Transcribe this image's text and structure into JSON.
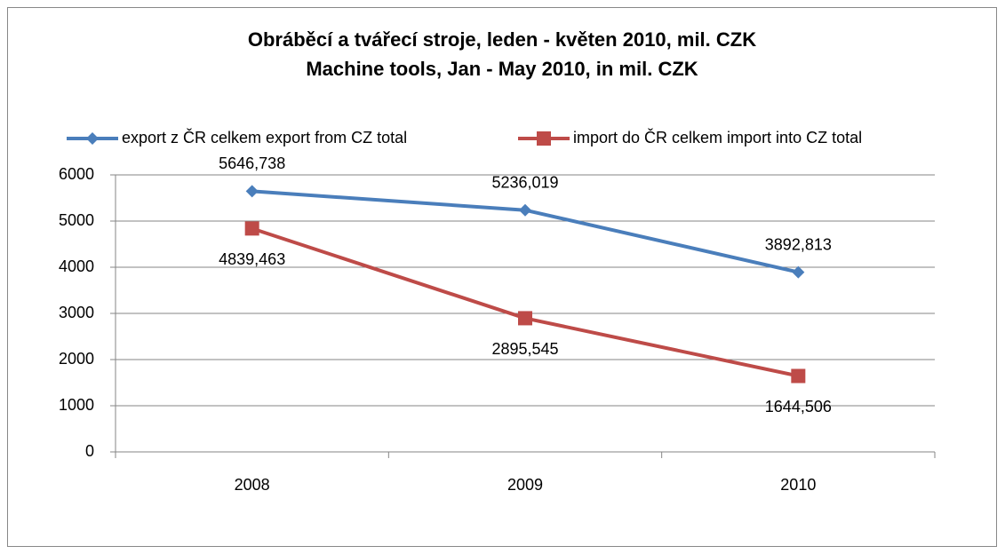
{
  "chart_data": {
    "type": "line",
    "title": "Obráběcí a tvářecí stroje, leden - květen 2010, mil. CZK",
    "subtitle": "Machine tools, Jan - May 2010, in mil. CZK",
    "categories": [
      "2008",
      "2009",
      "2010"
    ],
    "series": [
      {
        "name": "export z ČR celkem export from CZ total",
        "color": "#4a7ebb",
        "marker": "diamond",
        "values": [
          5646.738,
          5236.019,
          3892.813
        ],
        "value_labels": [
          "5646,738",
          "5236,019",
          "3892,813"
        ]
      },
      {
        "name": "import do ČR celkem import into CZ total",
        "color": "#be4b48",
        "marker": "square",
        "values": [
          4839.463,
          2895.545,
          1644.506
        ],
        "value_labels": [
          "4839,463",
          "2895,545",
          "1644,506"
        ]
      }
    ],
    "ylim": [
      0,
      6000
    ],
    "yticks": [
      0,
      1000,
      2000,
      3000,
      4000,
      5000,
      6000
    ],
    "grid": true,
    "legend": "top"
  }
}
